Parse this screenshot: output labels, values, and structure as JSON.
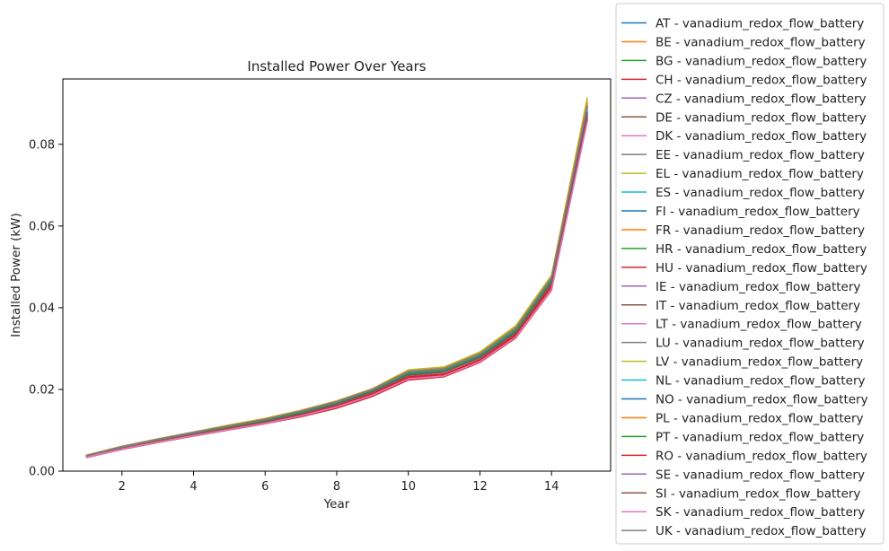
{
  "chart_data": {
    "type": "line",
    "title": "Installed Power Over Years",
    "xlabel": "Year",
    "ylabel": "Installed Power (kW)",
    "xlim": [
      0.35,
      15.65
    ],
    "ylim": [
      0,
      0.096
    ],
    "xticks": [
      2,
      4,
      6,
      8,
      10,
      12,
      14
    ],
    "yticks": [
      0.0,
      0.02,
      0.04,
      0.06,
      0.08
    ],
    "ytick_labels": [
      "0.00",
      "0.02",
      "0.04",
      "0.06",
      "0.08"
    ],
    "grid": false,
    "legend_position": "outside-right",
    "x": [
      1,
      2,
      3,
      4,
      5,
      6,
      7,
      8,
      9,
      10,
      11,
      12,
      13,
      14,
      15
    ],
    "series": [
      {
        "name": "AT - vanadium_redox_flow_battery",
        "color": "#1f77b4",
        "values": [
          0.0037,
          0.0059,
          0.0077,
          0.0094,
          0.011,
          0.0126,
          0.0145,
          0.0168,
          0.0198,
          0.024,
          0.0248,
          0.0283,
          0.0346,
          0.047,
          0.0885
        ]
      },
      {
        "name": "BE - vanadium_redox_flow_battery",
        "color": "#ff7f0e",
        "values": [
          0.0038,
          0.006,
          0.0078,
          0.0095,
          0.0111,
          0.0127,
          0.0147,
          0.017,
          0.02,
          0.0244,
          0.0251,
          0.0287,
          0.035,
          0.0474,
          0.09
        ]
      },
      {
        "name": "BG - vanadium_redox_flow_battery",
        "color": "#2ca02c",
        "values": [
          0.0037,
          0.0058,
          0.0076,
          0.0093,
          0.0109,
          0.0125,
          0.0144,
          0.0167,
          0.0197,
          0.0238,
          0.0246,
          0.0281,
          0.0343,
          0.0466,
          0.0875
        ]
      },
      {
        "name": "CH - vanadium_redox_flow_battery",
        "color": "#d62728",
        "values": [
          0.0033,
          0.0053,
          0.007,
          0.0086,
          0.0101,
          0.0116,
          0.0133,
          0.0154,
          0.0183,
          0.0223,
          0.0231,
          0.0266,
          0.0326,
          0.0443,
          0.086
        ]
      },
      {
        "name": "CZ - vanadium_redox_flow_battery",
        "color": "#9467bd",
        "values": [
          0.0038,
          0.0059,
          0.0077,
          0.0094,
          0.011,
          0.0126,
          0.0146,
          0.0169,
          0.0199,
          0.0242,
          0.0249,
          0.0285,
          0.0347,
          0.0471,
          0.089
        ]
      },
      {
        "name": "DE - vanadium_redox_flow_battery",
        "color": "#8c564b",
        "values": [
          0.0036,
          0.0057,
          0.0075,
          0.0092,
          0.0108,
          0.0124,
          0.0143,
          0.0166,
          0.0195,
          0.0236,
          0.0244,
          0.0279,
          0.0341,
          0.0463,
          0.088
        ]
      },
      {
        "name": "DK - vanadium_redox_flow_battery",
        "color": "#e377c2",
        "values": [
          0.0034,
          0.0054,
          0.0071,
          0.0087,
          0.0102,
          0.0117,
          0.0135,
          0.0157,
          0.0186,
          0.0226,
          0.0234,
          0.0268,
          0.0329,
          0.0446,
          0.0858
        ]
      },
      {
        "name": "EE - vanadium_redox_flow_battery",
        "color": "#7f7f7f",
        "values": [
          0.0038,
          0.006,
          0.0078,
          0.0095,
          0.0111,
          0.0127,
          0.0147,
          0.017,
          0.02,
          0.0243,
          0.025,
          0.0286,
          0.0349,
          0.0473,
          0.0895
        ]
      },
      {
        "name": "EL - vanadium_redox_flow_battery",
        "color": "#bcbd22",
        "values": [
          0.0039,
          0.0061,
          0.0079,
          0.0096,
          0.0113,
          0.0129,
          0.0149,
          0.0172,
          0.0202,
          0.0247,
          0.0254,
          0.0291,
          0.0355,
          0.0478,
          0.0915
        ]
      },
      {
        "name": "ES - vanadium_redox_flow_battery",
        "color": "#17becf",
        "values": [
          0.0037,
          0.0058,
          0.0076,
          0.0093,
          0.0109,
          0.0125,
          0.0144,
          0.0167,
          0.0197,
          0.0239,
          0.0247,
          0.0282,
          0.0344,
          0.0467,
          0.0882
        ]
      },
      {
        "name": "FI - vanadium_redox_flow_battery",
        "color": "#1f77b4",
        "values": [
          0.0036,
          0.0057,
          0.0075,
          0.0092,
          0.0108,
          0.0124,
          0.0143,
          0.0166,
          0.0196,
          0.0237,
          0.0245,
          0.028,
          0.0342,
          0.0465,
          0.0878
        ]
      },
      {
        "name": "FR - vanadium_redox_flow_battery",
        "color": "#ff7f0e",
        "values": [
          0.0038,
          0.006,
          0.0078,
          0.0095,
          0.0111,
          0.0127,
          0.0147,
          0.017,
          0.02,
          0.0243,
          0.0251,
          0.0287,
          0.035,
          0.0474,
          0.0905
        ]
      },
      {
        "name": "HR - vanadium_redox_flow_battery",
        "color": "#2ca02c",
        "values": [
          0.0037,
          0.0058,
          0.0076,
          0.0093,
          0.0109,
          0.0125,
          0.0144,
          0.0167,
          0.0197,
          0.0239,
          0.0246,
          0.0282,
          0.0344,
          0.0467,
          0.087
        ]
      },
      {
        "name": "HU - vanadium_redox_flow_battery",
        "color": "#d62728",
        "values": [
          0.0035,
          0.0055,
          0.0073,
          0.0089,
          0.0105,
          0.012,
          0.0139,
          0.0161,
          0.019,
          0.0231,
          0.0238,
          0.0273,
          0.0335,
          0.0455,
          0.0872
        ]
      },
      {
        "name": "IE - vanadium_redox_flow_battery",
        "color": "#9467bd",
        "values": [
          0.0038,
          0.0059,
          0.0077,
          0.0094,
          0.011,
          0.0126,
          0.0146,
          0.0169,
          0.0199,
          0.0242,
          0.025,
          0.0285,
          0.0348,
          0.0472,
          0.0892
        ]
      },
      {
        "name": "IT - vanadium_redox_flow_battery",
        "color": "#8c564b",
        "values": [
          0.0036,
          0.0056,
          0.0074,
          0.0091,
          0.0107,
          0.0122,
          0.0141,
          0.0164,
          0.0194,
          0.0235,
          0.0243,
          0.0278,
          0.034,
          0.0462,
          0.0876
        ]
      },
      {
        "name": "LT - vanadium_redox_flow_battery",
        "color": "#e377c2",
        "values": [
          0.0034,
          0.0054,
          0.0071,
          0.0087,
          0.0103,
          0.0118,
          0.0136,
          0.0158,
          0.0187,
          0.0227,
          0.0235,
          0.0269,
          0.033,
          0.0447,
          0.0862
        ]
      },
      {
        "name": "LU - vanadium_redox_flow_battery",
        "color": "#7f7f7f",
        "values": [
          0.0038,
          0.006,
          0.0078,
          0.0095,
          0.0112,
          0.0128,
          0.0148,
          0.0171,
          0.0201,
          0.0245,
          0.0252,
          0.0289,
          0.0352,
          0.0476,
          0.0898
        ]
      },
      {
        "name": "LV - vanadium_redox_flow_battery",
        "color": "#bcbd22",
        "values": [
          0.0039,
          0.0061,
          0.0079,
          0.0096,
          0.0113,
          0.0129,
          0.0149,
          0.0172,
          0.0202,
          0.0248,
          0.0255,
          0.0292,
          0.0356,
          0.048,
          0.091
        ]
      },
      {
        "name": "NL - vanadium_redox_flow_battery",
        "color": "#17becf",
        "values": [
          0.0037,
          0.0059,
          0.0077,
          0.0094,
          0.011,
          0.0126,
          0.0145,
          0.0168,
          0.0198,
          0.0241,
          0.0248,
          0.0284,
          0.0346,
          0.0469,
          0.0887
        ]
      },
      {
        "name": "NO - vanadium_redox_flow_battery",
        "color": "#1f77b4",
        "values": [
          0.0036,
          0.0057,
          0.0075,
          0.0092,
          0.0108,
          0.0124,
          0.0143,
          0.0166,
          0.0196,
          0.0238,
          0.0245,
          0.0281,
          0.0343,
          0.0465,
          0.088
        ]
      },
      {
        "name": "PL - vanadium_redox_flow_battery",
        "color": "#ff7f0e",
        "values": [
          0.0038,
          0.006,
          0.0078,
          0.0095,
          0.0112,
          0.0128,
          0.0148,
          0.0171,
          0.0201,
          0.0245,
          0.0252,
          0.0288,
          0.0351,
          0.0475,
          0.0902
        ]
      },
      {
        "name": "PT - vanadium_redox_flow_battery",
        "color": "#2ca02c",
        "values": [
          0.0037,
          0.0058,
          0.0076,
          0.0093,
          0.0109,
          0.0125,
          0.0145,
          0.0168,
          0.0198,
          0.024,
          0.0247,
          0.0283,
          0.0345,
          0.0468,
          0.0868
        ]
      },
      {
        "name": "RO - vanadium_redox_flow_battery",
        "color": "#d62728",
        "values": [
          0.0035,
          0.0055,
          0.0072,
          0.0088,
          0.0104,
          0.0119,
          0.0137,
          0.0159,
          0.0188,
          0.0229,
          0.0236,
          0.0271,
          0.0332,
          0.0451,
          0.0866
        ]
      },
      {
        "name": "SE - vanadium_redox_flow_battery",
        "color": "#9467bd",
        "values": [
          0.0038,
          0.006,
          0.0078,
          0.0095,
          0.0111,
          0.0127,
          0.0147,
          0.017,
          0.02,
          0.0243,
          0.025,
          0.0286,
          0.0349,
          0.0473,
          0.0893
        ]
      },
      {
        "name": "SI - vanadium_redox_flow_battery",
        "color": "#8c564b",
        "values": [
          0.0036,
          0.0056,
          0.0074,
          0.009,
          0.0106,
          0.0121,
          0.014,
          0.0163,
          0.0193,
          0.0234,
          0.0242,
          0.0277,
          0.0338,
          0.046,
          0.0874
        ]
      },
      {
        "name": "SK - vanadium_redox_flow_battery",
        "color": "#e377c2",
        "values": [
          0.0034,
          0.0054,
          0.0071,
          0.0087,
          0.0102,
          0.0117,
          0.0135,
          0.0157,
          0.0186,
          0.0226,
          0.0233,
          0.0268,
          0.0328,
          0.0445,
          0.0856
        ]
      },
      {
        "name": "UK - vanadium_redox_flow_battery",
        "color": "#7f7f7f",
        "values": [
          0.0038,
          0.0059,
          0.0077,
          0.0094,
          0.0111,
          0.0127,
          0.0147,
          0.017,
          0.02,
          0.0244,
          0.0251,
          0.0287,
          0.035,
          0.0474,
          0.0896
        ]
      }
    ]
  }
}
